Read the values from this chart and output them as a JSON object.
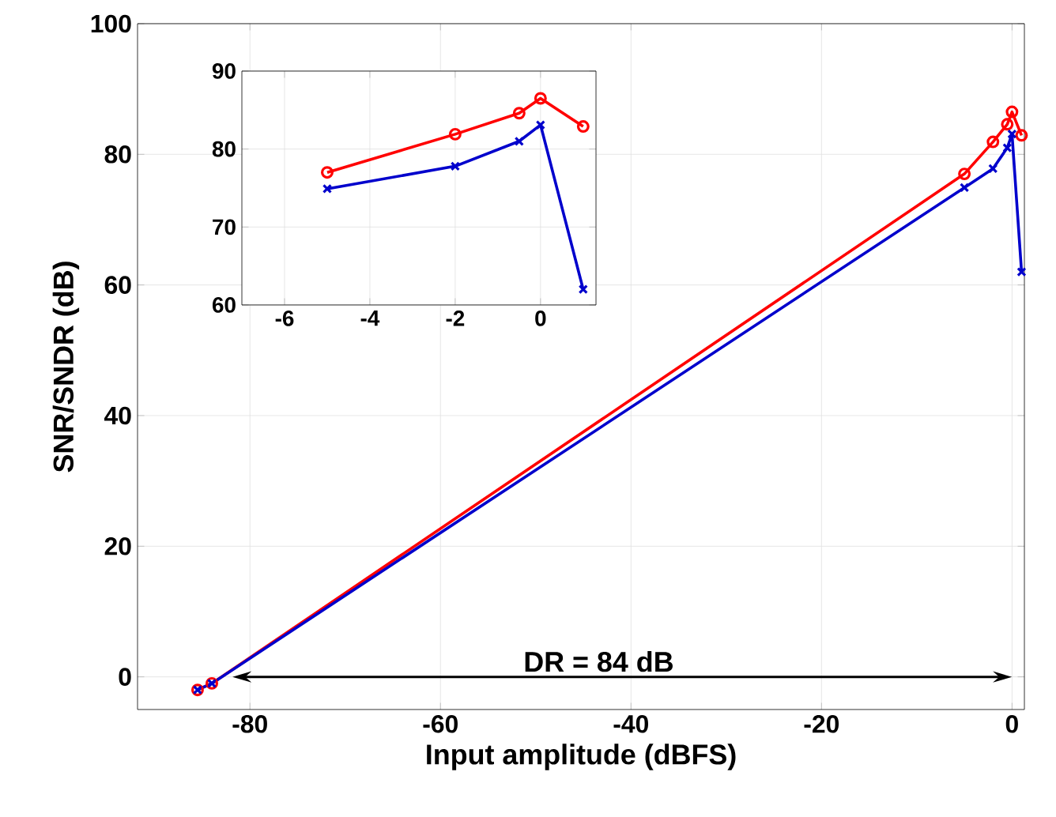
{
  "chart_data": [
    {
      "type": "line",
      "xlabel": "Input amplitude (dBFS)",
      "ylabel": "SNR/SNDR (dB)",
      "xlim": [
        -91.8,
        1.3
      ],
      "ylim": [
        -5,
        100
      ],
      "xticks": [
        -80,
        -60,
        -40,
        -20,
        0
      ],
      "yticks": [
        0,
        20,
        40,
        60,
        80,
        100
      ],
      "grid": true,
      "series": [
        {
          "color": "#ff0000",
          "marker": "circle",
          "x": [
            -85.5,
            -84,
            -5,
            -2,
            -0.5,
            0,
            1
          ],
          "values": [
            -2,
            -1,
            77.0,
            81.9,
            84.6,
            86.5,
            82.9
          ]
        },
        {
          "color": "#0000cc",
          "marker": "cross",
          "x": [
            -85.5,
            -84,
            -5,
            -2,
            -0.5,
            0,
            1
          ],
          "values": [
            -2,
            -1,
            74.9,
            77.8,
            81.0,
            83.1,
            62.0
          ]
        }
      ],
      "annotations": [
        "DR = 84 dB"
      ]
    },
    {
      "type": "line",
      "xlim": [
        -7,
        1.3
      ],
      "ylim": [
        60,
        90
      ],
      "xticks": [
        -6,
        -4,
        -2,
        0
      ],
      "yticks": [
        60,
        70,
        80,
        90
      ],
      "grid": true,
      "series": [
        {
          "color": "#ff0000",
          "marker": "circle",
          "x": [
            -5,
            -2,
            -0.5,
            0,
            1
          ],
          "values": [
            77.0,
            81.9,
            84.6,
            86.5,
            82.9
          ]
        },
        {
          "color": "#0000cc",
          "marker": "cross",
          "x": [
            -5,
            -2,
            -0.5,
            0,
            1
          ],
          "values": [
            74.9,
            77.8,
            81.0,
            83.1,
            62.0
          ]
        }
      ]
    }
  ]
}
